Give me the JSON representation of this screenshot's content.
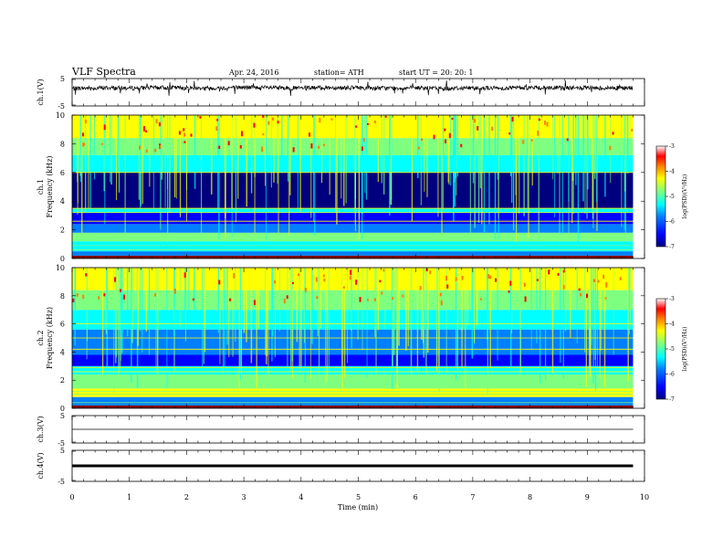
{
  "header": {
    "title": "VLF Spectra",
    "date": "Apr. 24, 2016",
    "station": "station= ATH",
    "start": "start  UT  =    20: 20: 1"
  },
  "chart_data": [
    {
      "type": "line",
      "panel": "ch1-waveform",
      "ylabel": "ch.1(V)",
      "ylim": [
        -5,
        5
      ],
      "yticks": [
        "5",
        "-5"
      ],
      "xlim": [
        0,
        10
      ],
      "x": [
        0,
        0.5,
        1,
        1.5,
        2,
        2.5,
        3,
        3.5,
        4,
        4.5,
        5,
        5.5,
        6,
        6.5,
        7,
        7.5,
        8,
        8.5,
        9,
        9.5,
        9.8
      ],
      "y": [
        1.4,
        1.6,
        1.5,
        1.7,
        1.6,
        1.5,
        1.8,
        1.6,
        1.5,
        1.7,
        1.6,
        1.5,
        1.6,
        1.4,
        1.6,
        1.5,
        1.7,
        1.6,
        1.5,
        1.6,
        1.5
      ]
    },
    {
      "type": "heatmap",
      "panel": "ch1-spectrogram",
      "ylabel_lines": [
        "ch.1",
        "Frequency  (kHz)"
      ],
      "ylim": [
        0,
        10
      ],
      "yticks": [
        "0",
        "2",
        "4",
        "6",
        "8",
        "10"
      ],
      "xlim": [
        0,
        10
      ],
      "colorbar": {
        "label": "log(PSD)(V²/Hz)",
        "range": [
          -7,
          -3
        ],
        "ticks": [
          "-3",
          "-4",
          "-5",
          "-6",
          "-7"
        ]
      }
    },
    {
      "type": "heatmap",
      "panel": "ch2-spectrogram",
      "ylabel_lines": [
        "ch.2",
        "Frequency  (kHz)"
      ],
      "ylim": [
        0,
        10
      ],
      "yticks": [
        "0",
        "2",
        "4",
        "6",
        "8",
        "10"
      ],
      "xlim": [
        0,
        10
      ],
      "colorbar": {
        "label": "log(PSD)(V²/Hz)",
        "range": [
          -7,
          -3
        ],
        "ticks": [
          "-3",
          "-4",
          "-5",
          "-6",
          "-7"
        ]
      }
    },
    {
      "type": "line",
      "panel": "ch3-waveform",
      "ylabel": "ch.3(V)",
      "ylim": [
        -5,
        5
      ],
      "yticks": [
        "5",
        "-5"
      ],
      "xlim": [
        0,
        10
      ],
      "x": [
        0,
        9.8
      ],
      "y": [
        0,
        0
      ]
    },
    {
      "type": "line",
      "panel": "ch4-waveform",
      "ylabel": "ch.4(V)",
      "ylim": [
        -5,
        5
      ],
      "yticks": [
        "5",
        "-5"
      ],
      "xlim": [
        0,
        10
      ],
      "x": [
        0,
        9.8
      ],
      "y": [
        0,
        0
      ]
    }
  ],
  "xaxis": {
    "label": "Time  (min)",
    "ticks": [
      "0",
      "1",
      "2",
      "3",
      "4",
      "5",
      "6",
      "7",
      "8",
      "9",
      "10"
    ]
  },
  "colors": {
    "jet": [
      "#00007f",
      "#0000ff",
      "#007fff",
      "#00ffff",
      "#7fff7f",
      "#ffff00",
      "#ff7f00",
      "#ff0000",
      "#7f0000"
    ]
  }
}
